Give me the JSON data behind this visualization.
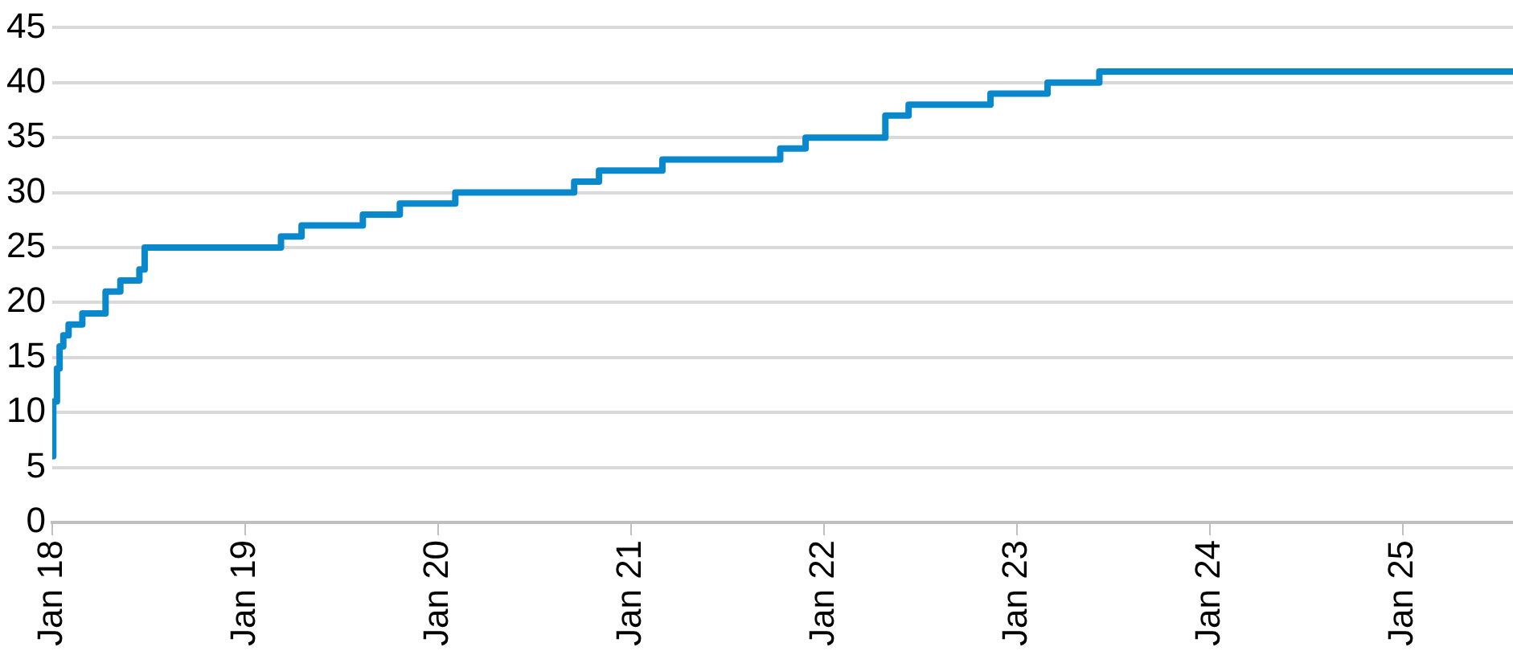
{
  "chart_data": {
    "type": "step",
    "x": [
      "2018-01-01",
      "2018-01-03",
      "2018-01-10",
      "2018-01-15",
      "2018-01-22",
      "2018-02-01",
      "2018-02-27",
      "2018-04-12",
      "2018-05-10",
      "2018-06-15",
      "2018-06-25",
      "2019-03-10",
      "2019-04-18",
      "2019-08-12",
      "2019-10-21",
      "2020-02-03",
      "2020-09-15",
      "2020-11-01",
      "2021-03-01",
      "2021-10-10",
      "2021-11-27",
      "2022-04-27",
      "2022-06-10",
      "2022-11-12",
      "2023-02-28",
      "2023-06-06",
      "2025-07-28"
    ],
    "series": [
      {
        "color": "#0a88cc",
        "values": [
          6,
          11,
          14,
          16,
          17,
          18,
          19,
          21,
          22,
          23,
          25,
          26,
          27,
          28,
          29,
          30,
          31,
          32,
          33,
          34,
          35,
          37,
          38,
          39,
          40,
          41,
          41
        ]
      }
    ],
    "xlim": [
      "2018-01-01",
      "2025-07-28"
    ],
    "xticks": [
      {
        "value": "2018-01-01",
        "label": "Jan 18"
      },
      {
        "value": "2019-01-01",
        "label": "Jan 19"
      },
      {
        "value": "2020-01-01",
        "label": "Jan 20"
      },
      {
        "value": "2021-01-01",
        "label": "Jan 21"
      },
      {
        "value": "2022-01-01",
        "label": "Jan 22"
      },
      {
        "value": "2023-01-01",
        "label": "Jan 23"
      },
      {
        "value": "2024-01-01",
        "label": "Jan 24"
      },
      {
        "value": "2025-01-01",
        "label": "Jan 25"
      }
    ],
    "ylim": [
      0,
      45
    ],
    "yticks": [
      0,
      5,
      10,
      15,
      20,
      25,
      30,
      35,
      40,
      45
    ],
    "grid": "y",
    "legend": false,
    "marker": "none",
    "line_style": "solid"
  }
}
